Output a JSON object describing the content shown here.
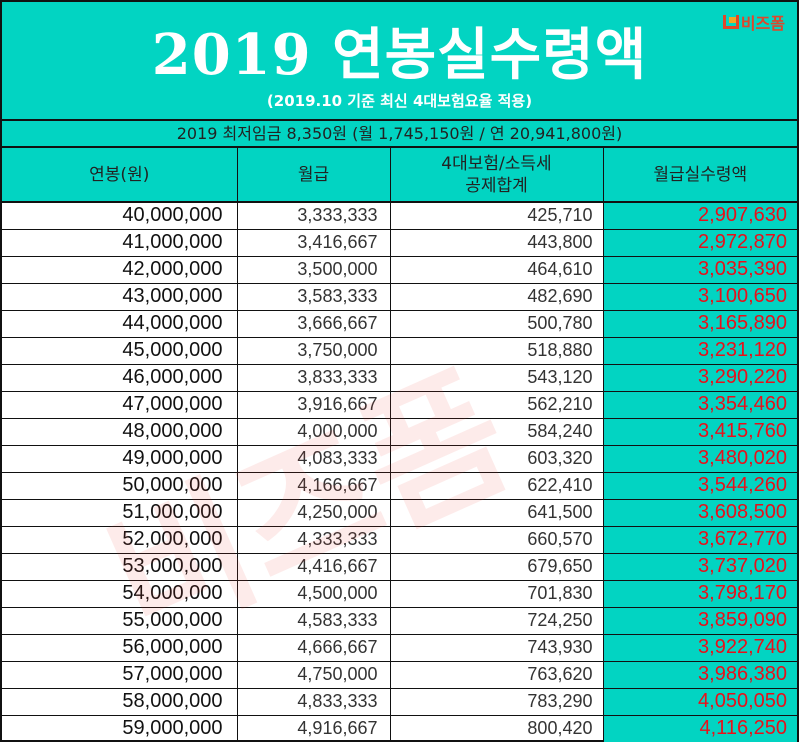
{
  "header": {
    "title": "2019 연봉실수령액",
    "subtitle": "(2019.10 기준 최신 4대보험요율 적용)",
    "logo_text": "비즈폼",
    "min_wage_line": "2019 최저임금 8,350원 (월 1,745,150원 / 연 20,941,800원)"
  },
  "table": {
    "columns": [
      "연봉(원)",
      "월급",
      "4대보험/소득세\n공제합계",
      "월급실수령액"
    ],
    "column_lines": {
      "deduction_line1": "4대보험/소득세",
      "deduction_line2": "공제합계"
    },
    "rows": [
      {
        "annual": "40,000,000",
        "monthly": "3,333,333",
        "deduction": "425,710",
        "net": "2,907,630"
      },
      {
        "annual": "41,000,000",
        "monthly": "3,416,667",
        "deduction": "443,800",
        "net": "2,972,870"
      },
      {
        "annual": "42,000,000",
        "monthly": "3,500,000",
        "deduction": "464,610",
        "net": "3,035,390"
      },
      {
        "annual": "43,000,000",
        "monthly": "3,583,333",
        "deduction": "482,690",
        "net": "3,100,650"
      },
      {
        "annual": "44,000,000",
        "monthly": "3,666,667",
        "deduction": "500,780",
        "net": "3,165,890"
      },
      {
        "annual": "45,000,000",
        "monthly": "3,750,000",
        "deduction": "518,880",
        "net": "3,231,120"
      },
      {
        "annual": "46,000,000",
        "monthly": "3,833,333",
        "deduction": "543,120",
        "net": "3,290,220"
      },
      {
        "annual": "47,000,000",
        "monthly": "3,916,667",
        "deduction": "562,210",
        "net": "3,354,460"
      },
      {
        "annual": "48,000,000",
        "monthly": "4,000,000",
        "deduction": "584,240",
        "net": "3,415,760"
      },
      {
        "annual": "49,000,000",
        "monthly": "4,083,333",
        "deduction": "603,320",
        "net": "3,480,020"
      },
      {
        "annual": "50,000,000",
        "monthly": "4,166,667",
        "deduction": "622,410",
        "net": "3,544,260"
      },
      {
        "annual": "51,000,000",
        "monthly": "4,250,000",
        "deduction": "641,500",
        "net": "3,608,500"
      },
      {
        "annual": "52,000,000",
        "monthly": "4,333,333",
        "deduction": "660,570",
        "net": "3,672,770"
      },
      {
        "annual": "53,000,000",
        "monthly": "4,416,667",
        "deduction": "679,650",
        "net": "3,737,020"
      },
      {
        "annual": "54,000,000",
        "monthly": "4,500,000",
        "deduction": "701,830",
        "net": "3,798,170"
      },
      {
        "annual": "55,000,000",
        "monthly": "4,583,333",
        "deduction": "724,250",
        "net": "3,859,090"
      },
      {
        "annual": "56,000,000",
        "monthly": "4,666,667",
        "deduction": "743,930",
        "net": "3,922,740"
      },
      {
        "annual": "57,000,000",
        "monthly": "4,750,000",
        "deduction": "763,620",
        "net": "3,986,380"
      },
      {
        "annual": "58,000,000",
        "monthly": "4,833,333",
        "deduction": "783,290",
        "net": "4,050,050"
      },
      {
        "annual": "59,000,000",
        "monthly": "4,916,667",
        "deduction": "800,420",
        "net": "4,116,250"
      }
    ]
  },
  "watermark": "비즈폼",
  "colors": {
    "accent_teal": "#02d4c2",
    "net_text_red": "#e8101a",
    "logo_red": "#e0462a",
    "border": "#111111"
  }
}
